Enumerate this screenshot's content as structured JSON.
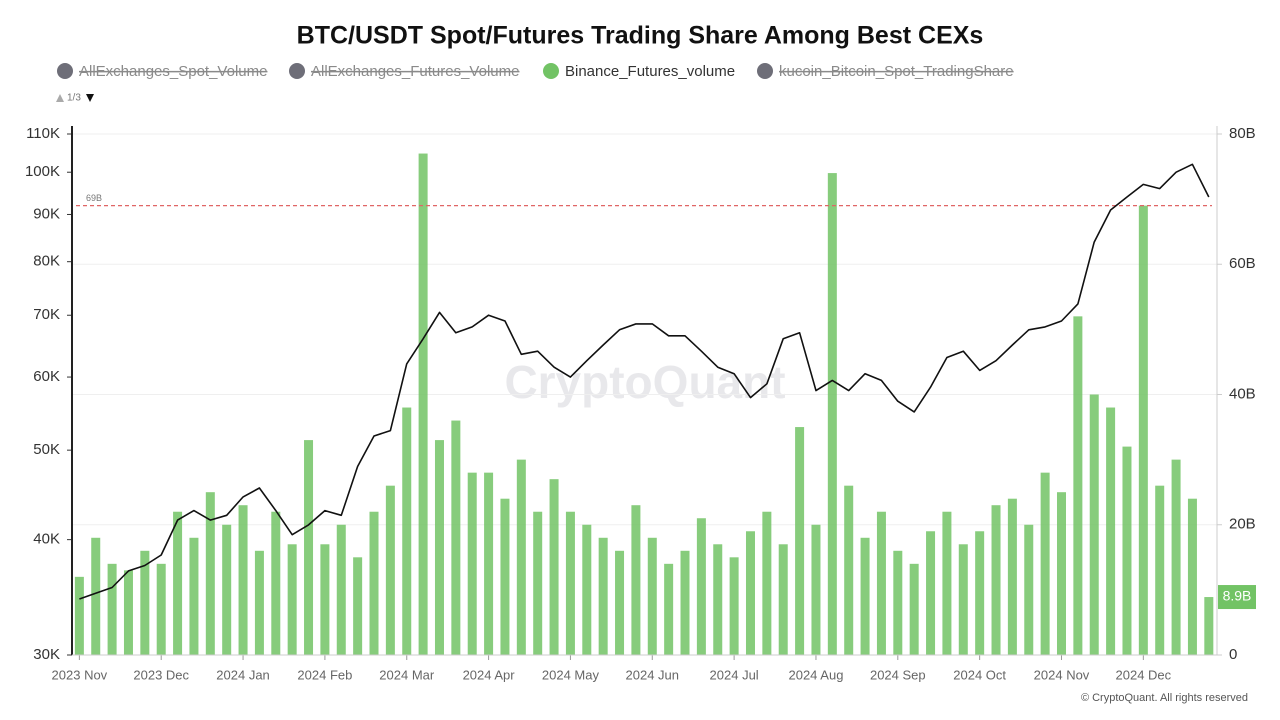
{
  "chart_data": {
    "type": "bar-line",
    "title": "BTC/USDT Spot/Futures Trading Share Among Best CEXs",
    "legend": {
      "items": [
        {
          "name": "AllExchanges_Spot_Volume",
          "color": "#6e6e78",
          "hidden": true
        },
        {
          "name": "AllExchanges_Futures_Volume",
          "color": "#6e6e78",
          "hidden": true
        },
        {
          "name": "Binance_Futures_volume",
          "color": "#72c365",
          "hidden": false
        },
        {
          "name": "kucoin_Bitcoin_Spot_TradingShare",
          "color": "#6e6e78",
          "hidden": true
        }
      ],
      "page": "1/3"
    },
    "watermark": "CryptoQuant",
    "credit": "© CryptoQuant. All rights reserved",
    "x": [
      0,
      0.2,
      0.4,
      0.6,
      0.8,
      1,
      1.2,
      1.4,
      1.6,
      1.8,
      2,
      2.2,
      2.4,
      2.6,
      2.8,
      3,
      3.2,
      3.4,
      3.6,
      3.8,
      4,
      4.2,
      4.4,
      4.6,
      4.8,
      5,
      5.2,
      5.4,
      5.6,
      5.8,
      6,
      6.2,
      6.4,
      6.6,
      6.8,
      7,
      7.2,
      7.4,
      7.6,
      7.8,
      8,
      8.2,
      8.4,
      8.6,
      8.8,
      9,
      9.2,
      9.4,
      9.6,
      9.8,
      10,
      10.2,
      10.4,
      10.6,
      10.8,
      11,
      11.2,
      11.4,
      11.6,
      11.8,
      12,
      12.2,
      12.4,
      12.6,
      12.8,
      13,
      13.2,
      13.4,
      13.6,
      13.8
    ],
    "xlim": [
      -0.09,
      13.9
    ],
    "xticks": [
      {
        "value": 0,
        "label": "2023 Nov"
      },
      {
        "value": 1,
        "label": "2023 Dec"
      },
      {
        "value": 2,
        "label": "2024 Jan"
      },
      {
        "value": 3,
        "label": "2024 Feb"
      },
      {
        "value": 4,
        "label": "2024 Mar"
      },
      {
        "value": 5,
        "label": "2024 Apr"
      },
      {
        "value": 6,
        "label": "2024 May"
      },
      {
        "value": 7,
        "label": "2024 Jun"
      },
      {
        "value": 8,
        "label": "2024 Jul"
      },
      {
        "value": 9,
        "label": "2024 Aug"
      },
      {
        "value": 10,
        "label": "2024 Sep"
      },
      {
        "value": 11,
        "label": "2024 Oct"
      },
      {
        "value": 12,
        "label": "2024 Nov"
      },
      {
        "value": 13,
        "label": "2024 Dec"
      }
    ],
    "ylim": [
      30000,
      110000
    ],
    "ylog": true,
    "yticks": [
      {
        "value": 30000,
        "label": "30K"
      },
      {
        "value": 40000,
        "label": "40K"
      },
      {
        "value": 50000,
        "label": "50K"
      },
      {
        "value": 60000,
        "label": "60K"
      },
      {
        "value": 70000,
        "label": "70K"
      },
      {
        "value": 80000,
        "label": "80K"
      },
      {
        "value": 90000,
        "label": "90K"
      },
      {
        "value": 100000,
        "label": "100K"
      },
      {
        "value": 110000,
        "label": "110K"
      }
    ],
    "y2lim": [
      0,
      80
    ],
    "y2ticks": [
      0,
      {
        "value": 20,
        "label": "20B"
      },
      {
        "value": 40,
        "label": "40B"
      },
      {
        "value": 60,
        "label": "60B"
      },
      {
        "value": 80,
        "label": "80B"
      }
    ],
    "grid": true,
    "series": [
      {
        "name": "Binance_Futures_volume",
        "type": "bar",
        "axis": "y2",
        "color": "#72c365",
        "values": [
          12,
          18,
          14,
          13,
          16,
          14,
          22,
          18,
          25,
          20,
          23,
          16,
          22,
          17,
          33,
          17,
          20,
          15,
          22,
          26,
          38,
          77,
          33,
          36,
          28,
          28,
          24,
          30,
          22,
          27,
          22,
          20,
          18,
          16,
          23,
          18,
          14,
          16,
          21,
          17,
          15,
          19,
          22,
          17,
          35,
          20,
          74,
          26,
          18,
          22,
          16,
          14,
          19,
          22,
          17,
          19,
          23,
          24,
          20,
          28,
          25,
          52,
          40,
          38,
          32,
          69,
          26,
          30,
          24,
          8.9
        ],
        "value_labels": [
          null,
          null,
          null,
          null,
          null,
          null,
          null,
          null,
          null,
          null,
          null,
          null,
          null,
          null,
          null,
          null,
          null,
          null,
          null,
          null,
          null,
          null,
          null,
          null,
          null,
          null,
          null,
          null,
          null,
          null,
          null,
          null,
          null,
          null,
          null,
          null,
          null,
          null,
          null,
          null,
          null,
          null,
          null,
          null,
          null,
          null,
          null,
          null,
          null,
          null,
          null,
          null,
          null,
          null,
          null,
          null,
          null,
          null,
          null,
          null,
          null,
          null,
          null,
          null,
          null,
          null,
          null,
          null,
          null,
          "8.9B"
        ]
      },
      {
        "type": "line",
        "axis": "y",
        "color": "#111111",
        "values": [
          34500,
          35000,
          35500,
          37000,
          37500,
          38500,
          42000,
          43000,
          42000,
          42500,
          44500,
          45500,
          43000,
          40500,
          41500,
          43000,
          42500,
          48000,
          51800,
          52500,
          62000,
          66000,
          70500,
          67000,
          68000,
          70000,
          69000,
          63500,
          64000,
          61500,
          60000,
          62500,
          65000,
          67500,
          68500,
          68500,
          66500,
          66500,
          64000,
          61500,
          60500,
          57000,
          59000,
          66000,
          67000,
          58000,
          59500,
          58000,
          60500,
          59500,
          56500,
          55000,
          58500,
          63000,
          64000,
          61000,
          62500,
          65000,
          67500,
          68000,
          69000,
          72000,
          84000,
          91000,
          94000,
          97000,
          96000,
          100000,
          102000,
          94000
        ]
      }
    ],
    "annotations": [
      {
        "value": 69,
        "label": "69B",
        "axis": "y2",
        "color": "#e06666"
      }
    ]
  }
}
